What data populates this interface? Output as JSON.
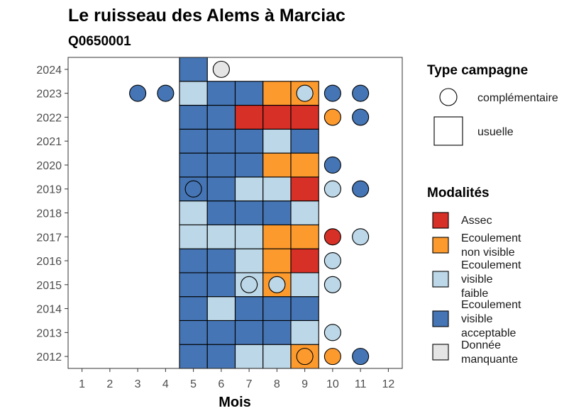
{
  "chart_data": {
    "type": "heatmap",
    "title": "Le ruisseau des Alems à Marciac",
    "subtitle": "Q0650001",
    "xlabel": "Mois",
    "ylabel": "",
    "x_ticks": [
      "1",
      "2",
      "3",
      "4",
      "5",
      "6",
      "7",
      "8",
      "9",
      "10",
      "11",
      "12"
    ],
    "y_ticks": [
      "2012",
      "2013",
      "2014",
      "2015",
      "2016",
      "2017",
      "2018",
      "2019",
      "2020",
      "2021",
      "2022",
      "2023",
      "2024"
    ],
    "xlim": [
      0.5,
      12.5
    ],
    "ylim": [
      2011.5,
      2024.5
    ],
    "grid": false,
    "legend_position": "right",
    "legend": {
      "type_title": "Type campagne",
      "types": [
        {
          "key": "complementaire",
          "label": "complémentaire"
        },
        {
          "key": "usuelle",
          "label": "usuelle"
        }
      ],
      "modalites_title": "Modalités",
      "modalites": [
        {
          "key": "assec",
          "lines": [
            "Assec"
          ],
          "color": "#D73027"
        },
        {
          "key": "nonvisible",
          "lines": [
            "Ecoulement",
            "non visible"
          ],
          "color": "#FD9A2E"
        },
        {
          "key": "faible",
          "lines": [
            "Ecoulement",
            "visible",
            "faible"
          ],
          "color": "#BCD7E7"
        },
        {
          "key": "acceptable",
          "lines": [
            "Ecoulement",
            "visible",
            "acceptable"
          ],
          "color": "#4575B4"
        },
        {
          "key": "manquante",
          "lines": [
            "Donnée",
            "manquante"
          ],
          "color": "#E5E5E5"
        }
      ]
    },
    "usuelle": [
      {
        "year": 2012,
        "months": {
          "5": "acceptable",
          "6": "acceptable",
          "7": "faible",
          "8": "faible",
          "9": "nonvisible"
        }
      },
      {
        "year": 2013,
        "months": {
          "5": "acceptable",
          "6": "acceptable",
          "7": "acceptable",
          "8": "acceptable",
          "9": "faible"
        }
      },
      {
        "year": 2014,
        "months": {
          "5": "acceptable",
          "6": "faible",
          "7": "acceptable",
          "8": "acceptable",
          "9": "acceptable"
        }
      },
      {
        "year": 2015,
        "months": {
          "5": "acceptable",
          "6": "acceptable",
          "7": "faible",
          "8": "nonvisible",
          "9": "faible"
        }
      },
      {
        "year": 2016,
        "months": {
          "5": "acceptable",
          "6": "acceptable",
          "7": "faible",
          "8": "nonvisible",
          "9": "assec"
        }
      },
      {
        "year": 2017,
        "months": {
          "5": "faible",
          "6": "faible",
          "7": "faible",
          "8": "nonvisible",
          "9": "nonvisible"
        }
      },
      {
        "year": 2018,
        "months": {
          "5": "faible",
          "6": "acceptable",
          "7": "acceptable",
          "8": "acceptable",
          "9": "faible"
        }
      },
      {
        "year": 2019,
        "months": {
          "5": "acceptable",
          "6": "acceptable",
          "7": "faible",
          "8": "faible",
          "9": "assec"
        }
      },
      {
        "year": 2020,
        "months": {
          "5": "acceptable",
          "6": "acceptable",
          "7": "acceptable",
          "8": "nonvisible",
          "9": "nonvisible"
        }
      },
      {
        "year": 2021,
        "months": {
          "5": "acceptable",
          "6": "acceptable",
          "7": "acceptable",
          "8": "faible",
          "9": "acceptable"
        }
      },
      {
        "year": 2022,
        "months": {
          "5": "acceptable",
          "6": "acceptable",
          "7": "assec",
          "8": "assec",
          "9": "assec"
        }
      },
      {
        "year": 2023,
        "months": {
          "5": "faible",
          "6": "acceptable",
          "7": "acceptable",
          "8": "nonvisible",
          "9": "nonvisible"
        }
      },
      {
        "year": 2024,
        "months": {
          "5": "acceptable"
        }
      }
    ],
    "complementaire": [
      {
        "year": 2012,
        "month": 9,
        "modalite": "nonvisible"
      },
      {
        "year": 2012,
        "month": 10,
        "modalite": "nonvisible"
      },
      {
        "year": 2012,
        "month": 11,
        "modalite": "acceptable"
      },
      {
        "year": 2013,
        "month": 10,
        "modalite": "faible"
      },
      {
        "year": 2015,
        "month": 7,
        "modalite": "faible"
      },
      {
        "year": 2015,
        "month": 8,
        "modalite": "faible"
      },
      {
        "year": 2015,
        "month": 10,
        "modalite": "faible"
      },
      {
        "year": 2016,
        "month": 10,
        "modalite": "faible"
      },
      {
        "year": 2017,
        "month": 10,
        "modalite": "assec"
      },
      {
        "year": 2017,
        "month": 11,
        "modalite": "faible"
      },
      {
        "year": 2019,
        "month": 5,
        "modalite": "acceptable"
      },
      {
        "year": 2019,
        "month": 10,
        "modalite": "faible"
      },
      {
        "year": 2019,
        "month": 11,
        "modalite": "acceptable"
      },
      {
        "year": 2020,
        "month": 10,
        "modalite": "acceptable"
      },
      {
        "year": 2022,
        "month": 10,
        "modalite": "nonvisible"
      },
      {
        "year": 2022,
        "month": 11,
        "modalite": "acceptable"
      },
      {
        "year": 2023,
        "month": 3,
        "modalite": "acceptable"
      },
      {
        "year": 2023,
        "month": 4,
        "modalite": "acceptable"
      },
      {
        "year": 2023,
        "month": 9,
        "modalite": "faible"
      },
      {
        "year": 2023,
        "month": 10,
        "modalite": "acceptable"
      },
      {
        "year": 2023,
        "month": 11,
        "modalite": "acceptable"
      },
      {
        "year": 2024,
        "month": 6,
        "modalite": "manquante"
      }
    ]
  }
}
